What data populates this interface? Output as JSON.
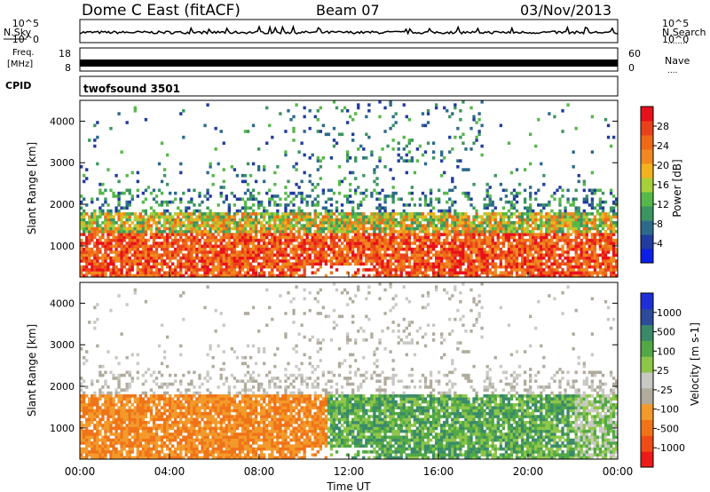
{
  "header": {
    "station": "Dome C East (fitACF)",
    "beam": "Beam 07",
    "date": "03/Nov/2013"
  },
  "top_panels": {
    "nsky_label": "N.Sky",
    "nsky_ticks": [
      "10^5",
      "10^0"
    ],
    "nsearch_label": "N.Search",
    "nsearch_marker": "........",
    "freq_label_1": "Freq.",
    "freq_label_2": "[MHz]",
    "freq_ticks": [
      "18",
      "8"
    ],
    "nave_ticks": [
      "60",
      "0"
    ],
    "nave_label": "Nave",
    "nave_marker": "....",
    "cpid_label": "CPID",
    "cpid_value": "twofsound 3501"
  },
  "colors": {
    "power_scale": [
      "#0b1fe6",
      "#213b9e",
      "#2d6a8a",
      "#3c9560",
      "#56b84a",
      "#a6cf3a",
      "#f2b21e",
      "#f08a20",
      "#ef6a17",
      "#e9421b",
      "#e8101a"
    ],
    "velocity_scale": [
      "#ec1a1a",
      "#ef4b16",
      "#f07318",
      "#f39a2a",
      "#b0ab9c",
      "#c9c9c4",
      "#8ec64a",
      "#52a845",
      "#3a8a6a",
      "#2e4b9a",
      "#1e2fd8"
    ]
  },
  "chart_data": [
    {
      "type": "heatmap",
      "name": "power",
      "ylabel": "Slant Range [km]",
      "y_ticks": [
        "4000",
        "3000",
        "2000",
        "1000"
      ],
      "ylim": [
        250,
        4500
      ],
      "colorbar_label": "Power [dB]",
      "colorbar_ticks": [
        "28",
        "24",
        "20",
        "16",
        "12",
        "8",
        "4"
      ],
      "colorbar_range": [
        0,
        32
      ],
      "x_range_hours": [
        0,
        24
      ]
    },
    {
      "type": "heatmap",
      "name": "velocity",
      "ylabel": "Slant Range [km]",
      "y_ticks": [
        "4000",
        "3000",
        "2000",
        "1000"
      ],
      "ylim": [
        250,
        4500
      ],
      "colorbar_label": "Velocity [m s-1]",
      "colorbar_ticks": [
        "1000",
        "500",
        "100",
        "25",
        "-25",
        "-100",
        "-500",
        "-1000"
      ],
      "xlabel": "Time UT",
      "x_ticks": [
        "00:00",
        "04:00",
        "08:00",
        "12:00",
        "16:00",
        "20:00",
        "00:00"
      ],
      "x_range_hours": [
        0,
        24
      ]
    }
  ]
}
